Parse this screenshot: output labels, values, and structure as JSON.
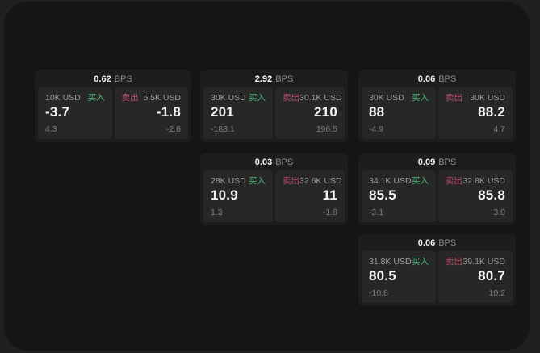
{
  "labels": {
    "unit": "BPS",
    "buy": "买入",
    "sell": "卖出"
  },
  "colors": {
    "buy_green": "#45b978",
    "sell_red": "#c0506a",
    "window_bg": "#151515",
    "card_bg": "#1d1d1d",
    "panel_bg": "#272727"
  },
  "cards": [
    {
      "bps": "0.62",
      "row": 1,
      "col": 1,
      "buy": {
        "amount": "10K USD",
        "value": "-3.7",
        "delta": "4.3"
      },
      "sell": {
        "amount": "5.5K USD",
        "value": "-1.8",
        "delta": "-2.6"
      }
    },
    {
      "bps": "2.92",
      "row": 1,
      "col": 2,
      "buy": {
        "amount": "30K USD",
        "value": "201",
        "delta": "-188.1"
      },
      "sell": {
        "amount": "30.1K USD",
        "value": "210",
        "delta": "196.5"
      }
    },
    {
      "bps": "0.06",
      "row": 1,
      "col": 3,
      "buy": {
        "amount": "30K USD",
        "value": "88",
        "delta": "-4.9"
      },
      "sell": {
        "amount": "30K USD",
        "value": "88.2",
        "delta": "4.7"
      }
    },
    {
      "bps": "0.03",
      "row": 2,
      "col": 2,
      "buy": {
        "amount": "28K USD",
        "value": "10.9",
        "delta": "1.3"
      },
      "sell": {
        "amount": "32.6K USD",
        "value": "11",
        "delta": "-1.8"
      }
    },
    {
      "bps": "0.09",
      "row": 2,
      "col": 3,
      "buy": {
        "amount": "34.1K USD",
        "value": "85.5",
        "delta": "-3.1"
      },
      "sell": {
        "amount": "32.8K USD",
        "value": "85.8",
        "delta": "3.0"
      }
    },
    {
      "bps": "0.06",
      "row": 3,
      "col": 3,
      "buy": {
        "amount": "31.8K USD",
        "value": "80.5",
        "delta": "-10.8"
      },
      "sell": {
        "amount": "39.1K USD",
        "value": "80.7",
        "delta": "10.2"
      }
    }
  ]
}
